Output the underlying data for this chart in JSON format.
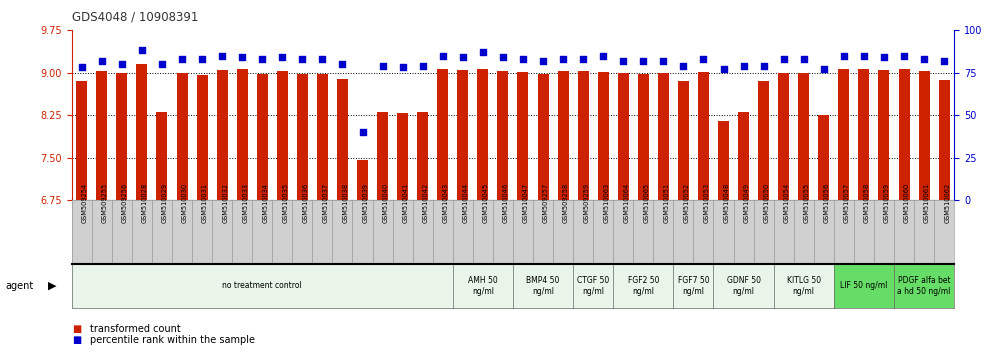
{
  "title": "GDS4048 / 10908391",
  "samples": [
    "GSM509254",
    "GSM509255",
    "GSM509256",
    "GSM510028",
    "GSM510029",
    "GSM510030",
    "GSM510031",
    "GSM510032",
    "GSM510033",
    "GSM510034",
    "GSM510035",
    "GSM510036",
    "GSM510037",
    "GSM510038",
    "GSM510039",
    "GSM510040",
    "GSM510041",
    "GSM510042",
    "GSM510043",
    "GSM510044",
    "GSM510045",
    "GSM510046",
    "GSM510047",
    "GSM509257",
    "GSM509258",
    "GSM509259",
    "GSM510063",
    "GSM510064",
    "GSM510065",
    "GSM510051",
    "GSM510052",
    "GSM510053",
    "GSM510048",
    "GSM510049",
    "GSM510050",
    "GSM510054",
    "GSM510055",
    "GSM510056",
    "GSM510057",
    "GSM510058",
    "GSM510059",
    "GSM510060",
    "GSM510061",
    "GSM510062"
  ],
  "red_values": [
    8.85,
    9.02,
    9.0,
    9.15,
    8.3,
    9.0,
    8.95,
    9.05,
    9.07,
    8.98,
    9.02,
    8.98,
    8.98,
    8.88,
    7.45,
    8.3,
    8.28,
    8.3,
    9.07,
    9.05,
    9.07,
    9.03,
    9.01,
    8.98,
    9.03,
    9.02,
    9.01,
    9.0,
    8.98,
    9.0,
    8.85,
    9.01,
    8.15,
    8.3,
    8.85,
    9.0,
    9.0,
    8.25,
    9.07,
    9.07,
    9.05,
    9.07,
    9.03,
    8.87
  ],
  "blue_values": [
    78,
    82,
    80,
    88,
    80,
    83,
    83,
    85,
    84,
    83,
    84,
    83,
    83,
    80,
    40,
    79,
    78,
    79,
    85,
    84,
    87,
    84,
    83,
    82,
    83,
    83,
    85,
    82,
    82,
    82,
    79,
    83,
    77,
    79,
    79,
    83,
    83,
    77,
    85,
    85,
    84,
    85,
    83,
    82
  ],
  "agent_groups": [
    {
      "label": "no treatment control",
      "start": 0,
      "end": 19,
      "color": "#e8f5e8"
    },
    {
      "label": "AMH 50\nng/ml",
      "start": 19,
      "end": 22,
      "color": "#e8f5e8"
    },
    {
      "label": "BMP4 50\nng/ml",
      "start": 22,
      "end": 25,
      "color": "#e8f5e8"
    },
    {
      "label": "CTGF 50\nng/ml",
      "start": 25,
      "end": 27,
      "color": "#e8f5e8"
    },
    {
      "label": "FGF2 50\nng/ml",
      "start": 27,
      "end": 30,
      "color": "#e8f5e8"
    },
    {
      "label": "FGF7 50\nng/ml",
      "start": 30,
      "end": 32,
      "color": "#e8f5e8"
    },
    {
      "label": "GDNF 50\nng/ml",
      "start": 32,
      "end": 35,
      "color": "#e8f5e8"
    },
    {
      "label": "KITLG 50\nng/ml",
      "start": 35,
      "end": 38,
      "color": "#e8f5e8"
    },
    {
      "label": "LIF 50 ng/ml",
      "start": 38,
      "end": 41,
      "color": "#66dd66"
    },
    {
      "label": "PDGF alfa bet\na hd 50 ng/ml",
      "start": 41,
      "end": 44,
      "color": "#66dd66"
    }
  ],
  "ylim_left": [
    6.75,
    9.75
  ],
  "ylim_right": [
    0,
    100
  ],
  "yticks_left": [
    6.75,
    7.5,
    8.25,
    9.0,
    9.75
  ],
  "yticks_right": [
    0,
    25,
    50,
    75,
    100
  ],
  "bar_color": "#cc2200",
  "dot_color": "#0000cc",
  "left_axis_color": "#cc2200",
  "right_axis_color": "#0000cc",
  "label_box_color": "#d0d0d0",
  "bar_width": 0.55
}
